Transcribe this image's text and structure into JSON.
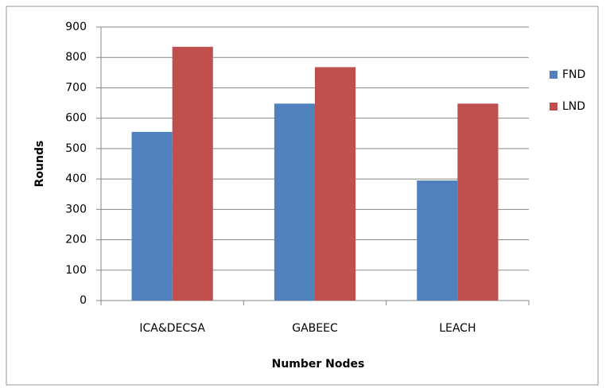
{
  "chart_data": {
    "type": "bar",
    "categories": [
      "ICA&DECSA",
      "GABEEC",
      "LEACH"
    ],
    "series": [
      {
        "name": "FND",
        "color": "#4f81bd",
        "values": [
          555,
          648,
          395
        ]
      },
      {
        "name": "LND",
        "color": "#c0504d",
        "values": [
          835,
          768,
          648
        ]
      }
    ],
    "xlabel": "Number Nodes",
    "ylabel": "Rounds",
    "ylim": [
      0,
      900
    ],
    "yticks": [
      0,
      100,
      200,
      300,
      400,
      500,
      600,
      700,
      800,
      900
    ],
    "grid": true,
    "legend": "right"
  }
}
